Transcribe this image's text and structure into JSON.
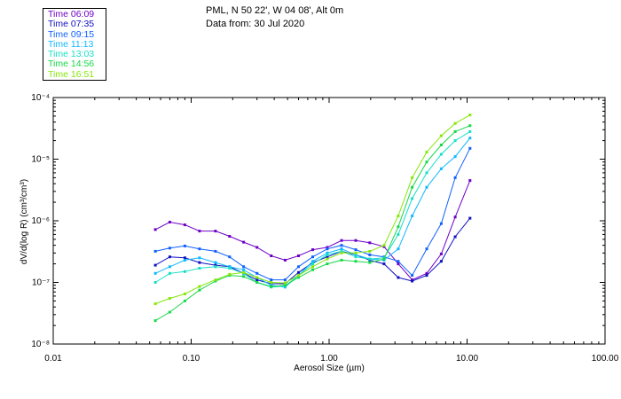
{
  "header": {
    "line1": "PML, N 50 22', W 04 08', Alt 0m",
    "line2": "Data from: 30 Jul 2020"
  },
  "legend": [
    {
      "label": "Time 06:09",
      "color": "#6f00c8"
    },
    {
      "label": "Time 07:35",
      "color": "#1010c0"
    },
    {
      "label": "Time 09:15",
      "color": "#1060ff"
    },
    {
      "label": "Time 11:13",
      "color": "#10b8ff"
    },
    {
      "label": "Time 13:03",
      "color": "#18e0c8"
    },
    {
      "label": "Time 14:56",
      "color": "#18d84a"
    },
    {
      "label": "Time 16:51",
      "color": "#86e80a"
    }
  ],
  "chart_data": {
    "type": "line",
    "title": "PML, N 50 22', W 04 08', Alt 0m",
    "xlabel": "Aerosol Size (µm)",
    "ylabel": "dV/d(log R) (cm³/cm³)",
    "xscale": "log",
    "yscale": "log",
    "xlim": [
      0.01,
      100
    ],
    "ylim": [
      1e-08,
      0.0001
    ],
    "x_ticks": [
      "0.01",
      "0.10",
      "1.00",
      "10.00",
      "100.00"
    ],
    "y_ticks": [
      "10⁻⁸",
      "10⁻⁷",
      "10⁻⁶",
      "10⁻⁵",
      "10⁻⁴"
    ],
    "x": [
      0.055,
      0.07,
      0.09,
      0.115,
      0.15,
      0.19,
      0.24,
      0.3,
      0.38,
      0.48,
      0.6,
      0.76,
      0.97,
      1.23,
      1.56,
      1.97,
      2.5,
      3.17,
      4.0,
      5.1,
      6.5,
      8.2,
      10.5
    ],
    "series": [
      {
        "name": "Time 06:09",
        "values": [
          7.2e-07,
          9.5e-07,
          8.6e-07,
          6.8e-07,
          6.8e-07,
          5.6e-07,
          4.5e-07,
          3.7e-07,
          2.7e-07,
          2.3e-07,
          2.7e-07,
          3.4e-07,
          3.7e-07,
          4.8e-07,
          4.8e-07,
          4.4e-07,
          3.8e-07,
          2e-07,
          1.1e-07,
          1.4e-07,
          2.9e-07,
          1.15e-06,
          4.5e-06
        ]
      },
      {
        "name": "Time 07:35",
        "values": [
          1.9e-07,
          2.6e-07,
          2.5e-07,
          2.1e-07,
          1.9e-07,
          1.8e-07,
          1.4e-07,
          1.1e-07,
          9.5e-08,
          9.5e-08,
          1.45e-07,
          2.1e-07,
          2.6e-07,
          3.2e-07,
          2.8e-07,
          2.3e-07,
          2e-07,
          1.2e-07,
          1.05e-07,
          1.3e-07,
          2.2e-07,
          5.5e-07,
          1.1e-06
        ]
      },
      {
        "name": "Time 09:15",
        "values": [
          3.2e-07,
          3.6e-07,
          3.9e-07,
          3.5e-07,
          3.2e-07,
          2.6e-07,
          1.8e-07,
          1.4e-07,
          1.1e-07,
          1.1e-07,
          1.8e-07,
          2.6e-07,
          3.5e-07,
          4e-07,
          3.4e-07,
          2.8e-07,
          2.6e-07,
          2.2e-07,
          1.3e-07,
          3.5e-07,
          9e-07,
          5e-06,
          1.5e-05
        ]
      },
      {
        "name": "Time 11:13",
        "values": [
          1.4e-07,
          1.8e-07,
          2.3e-07,
          2.5e-07,
          2.1e-07,
          1.8e-07,
          1.6e-07,
          1.2e-07,
          9e-08,
          8.4e-08,
          1.3e-07,
          2.2e-07,
          3e-07,
          3.5e-07,
          2.8e-07,
          2.4e-07,
          2.3e-07,
          3.5e-07,
          1.2e-06,
          3.5e-06,
          7e-06,
          1.1e-05,
          2.2e-05
        ]
      },
      {
        "name": "Time 13:03",
        "values": [
          1e-07,
          1.4e-07,
          1.5e-07,
          1.7e-07,
          1.8e-07,
          1.7e-07,
          1.4e-07,
          1e-07,
          8.4e-08,
          8.7e-08,
          1.3e-07,
          2e-07,
          2.8e-07,
          3.2e-07,
          2.6e-07,
          2.4e-07,
          2.5e-07,
          6e-07,
          2.3e-06,
          6e-06,
          1.2e-05,
          2e-05,
          2.8e-05
        ]
      },
      {
        "name": "Time 14:56",
        "values": [
          2.4e-08,
          3.3e-08,
          5e-08,
          7.5e-08,
          1.05e-07,
          1.3e-07,
          1.25e-07,
          1e-07,
          8.6e-08,
          9e-08,
          1.2e-07,
          1.6e-07,
          2e-07,
          2.3e-07,
          2.2e-07,
          2.1e-07,
          2.4e-07,
          8e-07,
          3.5e-06,
          9e-06,
          1.7e-05,
          2.8e-05,
          3.5e-05
        ]
      },
      {
        "name": "Time 16:51",
        "values": [
          4.5e-08,
          5.5e-08,
          6.5e-08,
          8.6e-08,
          1.1e-07,
          1.35e-07,
          1.45e-07,
          1.2e-07,
          1e-07,
          9.8e-08,
          1.3e-07,
          1.8e-07,
          2.4e-07,
          3e-07,
          3e-07,
          3.2e-07,
          4e-07,
          1.2e-06,
          5e-06,
          1.3e-05,
          2.4e-05,
          3.8e-05,
          5.2e-05
        ]
      }
    ]
  }
}
